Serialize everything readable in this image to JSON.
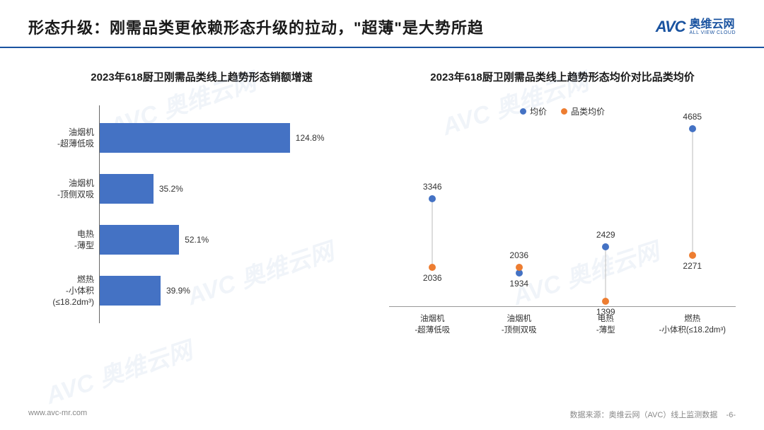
{
  "header": {
    "title": "形态升级：刚需品类更依赖形态升级的拉动，\"超薄\"是大势所趋",
    "logo_mark": "AVC",
    "logo_cn": "奥维云网",
    "logo_en": "ALL VIEW CLOUD"
  },
  "bar_chart": {
    "title": "2023年618厨卫刚需品类线上趋势形态销额增速",
    "type": "bar-horizontal",
    "bar_color": "#4472c4",
    "axis_color": "#666666",
    "label_color": "#333333",
    "max_value": 130,
    "rows": [
      {
        "label_l1": "油烟机",
        "label_l2": "-超薄低吸",
        "value": 124.8,
        "display": "124.8%"
      },
      {
        "label_l1": "油烟机",
        "label_l2": "-顶侧双吸",
        "value": 35.2,
        "display": "35.2%"
      },
      {
        "label_l1": "电热",
        "label_l2": "-薄型",
        "value": 52.1,
        "display": "52.1%"
      },
      {
        "label_l1": "燃热",
        "label_l2": "-小体积",
        "label_l3": "(≤18.2dm³)",
        "value": 39.9,
        "display": "39.9%"
      }
    ]
  },
  "scatter_chart": {
    "title": "2023年618厨卫刚需品类线上趋势形态均价对比品类均价",
    "type": "dot-compare",
    "ylim": [
      1300,
      4800
    ],
    "legend": [
      {
        "name": "均价",
        "color": "#4472c4"
      },
      {
        "name": "品类均价",
        "color": "#ed7d31"
      }
    ],
    "categories": [
      {
        "label_l1": "油烟机",
        "label_l2": "-超薄低吸",
        "blue": 3346,
        "orange": 2036
      },
      {
        "label_l1": "油烟机",
        "label_l2": "-顶侧双吸",
        "blue": 1934,
        "orange": 2036
      },
      {
        "label_l1": "电热",
        "label_l2": "-薄型",
        "blue": 2429,
        "orange": 1399
      },
      {
        "label_l1": "燃热",
        "label_l2": "-小体积(≤18.2dm³)",
        "blue": 4685,
        "orange": 2271
      }
    ],
    "connector_color": "#bbbbbb",
    "label_color": "#333333"
  },
  "footer": {
    "url": "www.avc-mr.com",
    "source": "数据来源：奥维云网（AVC）线上监测数据",
    "page": "-6-"
  },
  "watermark": "AVC 奥维云网"
}
